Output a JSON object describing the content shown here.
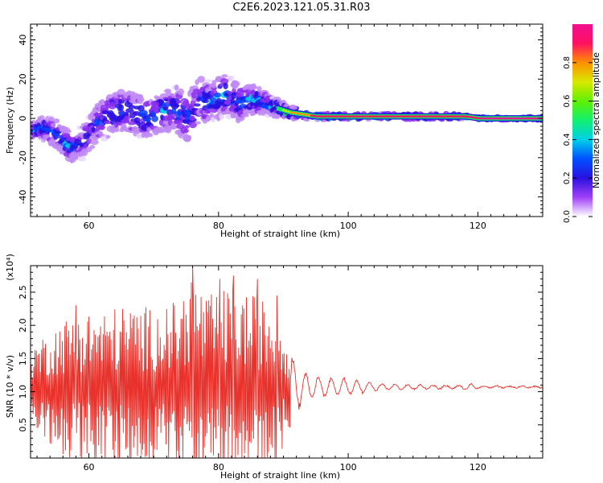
{
  "title": "C2E6.2023.121.05.31.R03",
  "colors": {
    "snr_line": "#e8322b",
    "spectrogram_map": [
      "#e9d7fb",
      "#c08af5",
      "#8b2ff0",
      "#2a10e0",
      "#0a40ff",
      "#00d8e8",
      "#12f060",
      "#b0f000",
      "#ff9a00",
      "#ff1060",
      "#f01090"
    ]
  },
  "chart_data": [
    {
      "type": "heatmap",
      "xlabel": "Height of straight line (km)",
      "ylabel": "Frequency (Hz)",
      "xlim": [
        51,
        130
      ],
      "ylim": [
        -50,
        48
      ],
      "xticks": [
        60,
        80,
        100,
        120
      ],
      "yticks": [
        -40,
        -20,
        0,
        20,
        40
      ],
      "colorbar": {
        "label": "Normalized spectral amplitude",
        "range": [
          0.0,
          1.0
        ],
        "ticks": [
          "0.0",
          "0.2",
          "0.4",
          "0.6",
          "0.8"
        ]
      },
      "ridge": {
        "x": [
          51,
          53,
          55,
          57,
          59,
          61,
          63,
          65,
          67,
          69,
          71,
          73,
          75,
          77,
          79,
          81,
          83,
          85,
          87,
          89,
          91,
          93,
          95,
          100,
          105,
          110,
          115,
          118,
          120,
          125,
          130
        ],
        "freq": [
          -6,
          -5,
          -8,
          -15,
          -12,
          -3,
          2,
          4,
          2,
          0,
          3,
          5,
          0,
          9,
          9,
          12,
          8,
          10,
          8,
          5,
          3,
          2,
          1,
          1,
          1,
          1,
          1,
          1,
          0,
          0,
          0
        ],
        "spread": [
          5,
          6,
          7,
          8,
          9,
          10,
          12,
          12,
          11,
          11,
          11,
          12,
          13,
          12,
          11,
          11,
          10,
          8,
          6,
          4,
          3,
          2.5,
          2,
          1.8,
          1.8,
          1.8,
          1.8,
          1.5,
          1.2,
          1.2,
          1.2
        ],
        "amplitude": [
          0.4,
          0.45,
          0.45,
          0.45,
          0.35,
          0.4,
          0.4,
          0.45,
          0.45,
          0.45,
          0.45,
          0.45,
          0.4,
          0.45,
          0.45,
          0.45,
          0.45,
          0.45,
          0.5,
          0.6,
          0.75,
          0.8,
          0.9,
          0.9,
          0.85,
          0.9,
          0.9,
          0.9,
          0.95,
          0.95,
          0.95
        ]
      }
    },
    {
      "type": "line",
      "xlabel": "Height of straight line (km)",
      "ylabel": "SNR (10 * v/v)",
      "yscale_label": "(x10⁴)",
      "xlim": [
        51,
        130
      ],
      "ylim": [
        0,
        2.9
      ],
      "xticks": [
        60,
        80,
        100,
        120
      ],
      "yticks": [
        0.5,
        1.0,
        1.5,
        2.0,
        2.5
      ],
      "ytick_labels": [
        "0.5",
        "1.0",
        "1.5",
        "2.0",
        "2.5"
      ],
      "baseline": 1.07,
      "envelope": {
        "x": [
          51,
          55,
          58,
          62,
          66,
          70,
          74,
          76,
          78,
          82,
          86,
          89,
          91,
          93,
          95,
          97,
          100,
          103,
          106,
          110,
          115,
          118,
          119,
          120,
          125,
          130
        ],
        "amp": [
          0.6,
          0.9,
          1.1,
          1.1,
          1.2,
          1.15,
          1.25,
          1.75,
          1.3,
          1.45,
          1.3,
          1.2,
          0.6,
          0.3,
          0.2,
          0.15,
          0.15,
          0.08,
          0.05,
          0.04,
          0.03,
          0.03,
          0.06,
          0.02,
          0.015,
          0.015
        ]
      },
      "peaks": [
        {
          "x": 76.0,
          "y": 2.9
        },
        {
          "x": 80.2,
          "y": 2.7
        },
        {
          "x": 82.3,
          "y": 2.75
        },
        {
          "x": 86.0,
          "y": 2.7
        },
        {
          "x": 89.0,
          "y": 2.45
        },
        {
          "x": 58.0,
          "y": 2.3
        }
      ]
    }
  ]
}
